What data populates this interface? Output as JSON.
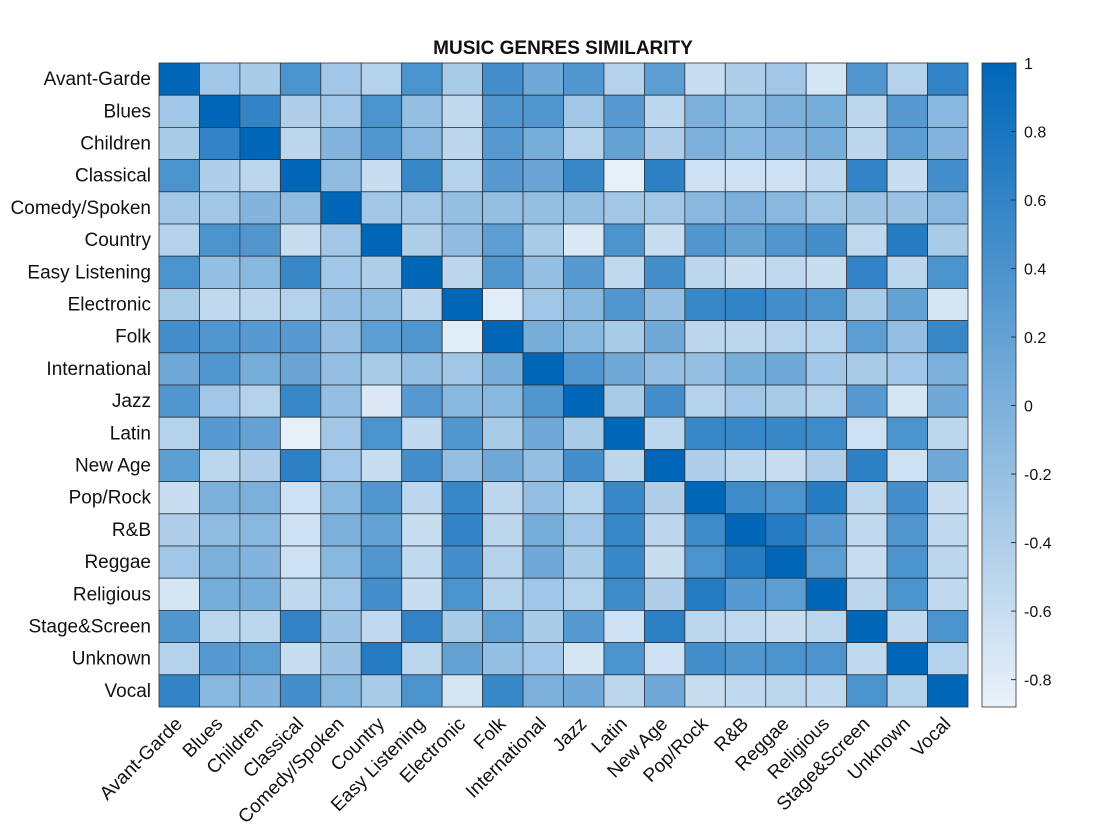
{
  "chart_data": {
    "type": "heatmap",
    "title": "MUSIC GENRES SIMILARITY",
    "xlabel": "",
    "ylabel": "",
    "categories": [
      "Avant-Garde",
      "Blues",
      "Children",
      "Classical",
      "Comedy/Spoken",
      "Country",
      "Easy Listening",
      "Electronic",
      "Folk",
      "International",
      "Jazz",
      "Latin",
      "New Age",
      "Pop/Rock",
      "R&B",
      "Reggae",
      "Religious",
      "Stage&Screen",
      "Unknown",
      "Vocal"
    ],
    "values": [
      [
        1.0,
        -0.3,
        -0.35,
        0.4,
        -0.3,
        -0.45,
        0.4,
        -0.35,
        0.45,
        0.1,
        0.35,
        -0.45,
        0.25,
        -0.6,
        -0.4,
        -0.3,
        -0.7,
        0.35,
        -0.45,
        0.6
      ],
      [
        -0.3,
        1.0,
        0.6,
        -0.4,
        -0.3,
        0.4,
        -0.2,
        -0.55,
        0.35,
        0.35,
        -0.3,
        0.3,
        -0.5,
        0.0,
        -0.15,
        0.0,
        0.05,
        -0.5,
        0.3,
        -0.1
      ],
      [
        -0.35,
        0.6,
        1.0,
        -0.5,
        -0.05,
        0.35,
        -0.1,
        -0.5,
        0.3,
        0.05,
        -0.45,
        0.2,
        -0.4,
        0.0,
        -0.1,
        -0.05,
        0.05,
        -0.5,
        0.25,
        -0.05
      ],
      [
        0.4,
        -0.4,
        -0.5,
        1.0,
        -0.15,
        -0.6,
        0.55,
        -0.45,
        0.3,
        0.15,
        0.55,
        -0.85,
        0.65,
        -0.65,
        -0.65,
        -0.65,
        -0.55,
        0.6,
        -0.6,
        0.45
      ],
      [
        -0.3,
        -0.3,
        -0.05,
        -0.15,
        1.0,
        -0.3,
        -0.3,
        -0.2,
        -0.2,
        -0.2,
        -0.2,
        -0.3,
        -0.3,
        -0.1,
        0.0,
        -0.1,
        -0.3,
        -0.25,
        -0.25,
        -0.1
      ],
      [
        -0.45,
        0.4,
        0.35,
        -0.6,
        -0.3,
        1.0,
        -0.4,
        -0.15,
        0.25,
        -0.35,
        -0.75,
        0.4,
        -0.6,
        0.35,
        0.2,
        0.35,
        0.45,
        -0.55,
        0.7,
        -0.35
      ],
      [
        0.4,
        -0.2,
        -0.1,
        0.55,
        -0.3,
        -0.4,
        1.0,
        -0.5,
        0.35,
        -0.2,
        0.3,
        -0.55,
        0.45,
        -0.5,
        -0.6,
        -0.55,
        -0.6,
        0.6,
        -0.5,
        0.4
      ],
      [
        -0.35,
        -0.55,
        -0.5,
        -0.45,
        -0.2,
        -0.15,
        -0.5,
        1.0,
        -0.8,
        -0.3,
        -0.1,
        0.35,
        -0.2,
        0.55,
        0.6,
        0.45,
        0.4,
        -0.35,
        0.2,
        -0.7
      ],
      [
        0.45,
        0.35,
        0.3,
        0.3,
        -0.2,
        0.25,
        0.35,
        -0.8,
        1.0,
        0.05,
        -0.1,
        -0.35,
        0.1,
        -0.5,
        -0.5,
        -0.45,
        -0.45,
        0.25,
        -0.2,
        0.55
      ],
      [
        0.1,
        0.35,
        0.05,
        0.15,
        -0.2,
        -0.35,
        -0.2,
        -0.3,
        0.05,
        1.0,
        0.35,
        0.1,
        -0.2,
        -0.2,
        0.05,
        0.1,
        -0.3,
        -0.35,
        -0.3,
        0.0
      ],
      [
        0.35,
        -0.3,
        -0.45,
        0.55,
        -0.2,
        -0.75,
        0.3,
        -0.1,
        -0.1,
        0.35,
        1.0,
        -0.35,
        0.45,
        -0.45,
        -0.3,
        -0.35,
        -0.45,
        0.3,
        -0.7,
        0.1
      ],
      [
        -0.45,
        0.3,
        0.2,
        -0.85,
        -0.3,
        0.4,
        -0.55,
        0.35,
        -0.35,
        0.1,
        -0.35,
        1.0,
        -0.5,
        0.55,
        0.55,
        0.55,
        0.5,
        -0.65,
        0.4,
        -0.5
      ],
      [
        0.25,
        -0.5,
        -0.4,
        0.65,
        -0.3,
        -0.6,
        0.45,
        -0.2,
        0.1,
        -0.2,
        0.45,
        -0.5,
        1.0,
        -0.4,
        -0.5,
        -0.6,
        -0.4,
        0.65,
        -0.65,
        0.1
      ],
      [
        -0.6,
        0.0,
        0.0,
        -0.65,
        -0.1,
        0.35,
        -0.5,
        0.55,
        -0.5,
        -0.2,
        -0.45,
        0.55,
        -0.4,
        1.0,
        0.5,
        0.4,
        0.7,
        -0.5,
        0.45,
        -0.6
      ],
      [
        -0.4,
        -0.15,
        -0.1,
        -0.65,
        0.0,
        0.2,
        -0.6,
        0.6,
        -0.5,
        0.05,
        -0.3,
        0.55,
        -0.5,
        0.5,
        1.0,
        0.7,
        0.3,
        -0.55,
        0.35,
        -0.55
      ],
      [
        -0.3,
        0.0,
        -0.05,
        -0.65,
        -0.1,
        0.35,
        -0.55,
        0.45,
        -0.45,
        0.1,
        -0.35,
        0.55,
        -0.6,
        0.4,
        0.7,
        1.0,
        0.25,
        -0.6,
        0.4,
        -0.5
      ],
      [
        -0.7,
        0.05,
        0.05,
        -0.55,
        -0.3,
        0.45,
        -0.6,
        0.4,
        -0.45,
        -0.3,
        -0.45,
        0.5,
        -0.4,
        0.7,
        0.3,
        0.25,
        1.0,
        -0.5,
        0.4,
        -0.55
      ],
      [
        0.35,
        -0.5,
        -0.5,
        0.6,
        -0.25,
        -0.55,
        0.6,
        -0.35,
        0.25,
        -0.35,
        0.3,
        -0.65,
        0.65,
        -0.5,
        -0.55,
        -0.6,
        -0.5,
        1.0,
        -0.55,
        0.4
      ],
      [
        -0.45,
        0.3,
        0.25,
        -0.6,
        -0.25,
        0.7,
        -0.5,
        0.2,
        -0.2,
        -0.3,
        -0.7,
        0.4,
        -0.65,
        0.45,
        0.35,
        0.4,
        0.4,
        -0.55,
        1.0,
        -0.45
      ],
      [
        0.6,
        -0.1,
        -0.05,
        0.45,
        -0.1,
        -0.35,
        0.4,
        -0.7,
        0.55,
        0.0,
        0.1,
        -0.5,
        0.1,
        -0.6,
        -0.55,
        -0.5,
        -0.55,
        0.4,
        -0.45,
        1.0
      ]
    ],
    "colorbar": {
      "range": [
        -0.88,
        1.0
      ],
      "ticks": [
        1,
        0.8,
        0.6,
        0.4,
        0.2,
        0,
        -0.2,
        -0.4,
        -0.6,
        -0.8
      ],
      "tick_labels": [
        "1",
        "0.8",
        "0.6",
        "0.4",
        "0.2",
        "0",
        "-0.2",
        "-0.4",
        "-0.6",
        "-0.8"
      ],
      "placement": "right"
    },
    "colormap": {
      "low": "#eaf2fa",
      "high": "#0066b8"
    },
    "grid": false
  }
}
